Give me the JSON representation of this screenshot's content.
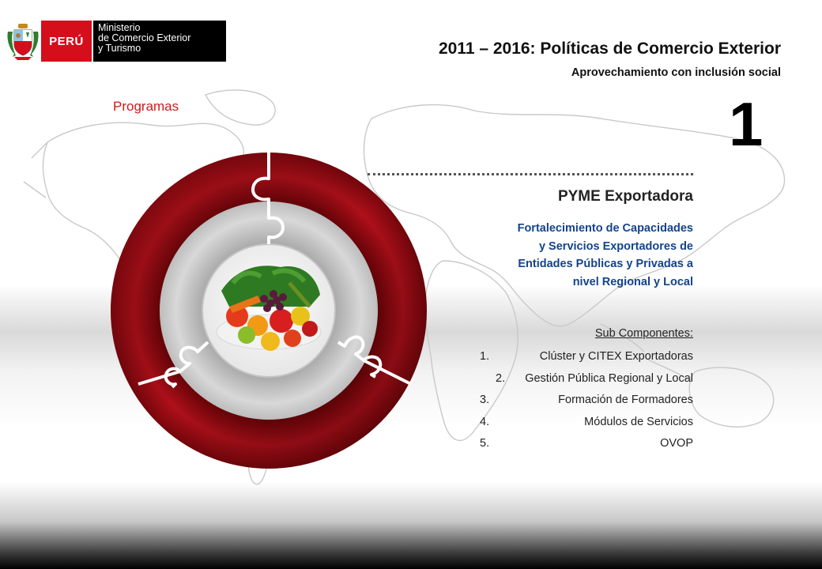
{
  "header": {
    "logo_country": "PERÚ",
    "ministry_lines": [
      "Ministerio",
      "de Comercio Exterior",
      "y Turismo"
    ],
    "title": "2011 – 2016: Políticas de Comercio Exterior",
    "subtitle": "Aprovechamiento con inclusión social"
  },
  "section_label": "Programas",
  "program_number": "1",
  "program": {
    "name": "PYME Exportadora",
    "description_lines": [
      "Fortalecimiento de Capacidades",
      "y Servicios Exportadores de",
      "Entidades Públicas y Privadas a",
      "nivel Regional y Local"
    ]
  },
  "sub_components": {
    "heading": "Sub Componentes:",
    "items": [
      {
        "num": "1.",
        "text": "Clúster y CITEX Exportadoras"
      },
      {
        "num": "2.",
        "text": "Gestión Pública Regional y Local"
      },
      {
        "num": "3.",
        "text": "Formación de Formadores"
      },
      {
        "num": "4.",
        "text": "Módulos de Servicios"
      },
      {
        "num": "5.",
        "text": "OVOP"
      }
    ]
  },
  "colors": {
    "brand_red": "#d50e1c",
    "accent_red": "#d01a1a",
    "description_blue": "#14438c",
    "ring_dark_red": "#8a0a10",
    "ring_gray": "#cfcfcf"
  },
  "icons": [
    "coat-of-arms-icon",
    "world-map-background",
    "puzzle-ring-graphic",
    "vegetables-photo"
  ]
}
